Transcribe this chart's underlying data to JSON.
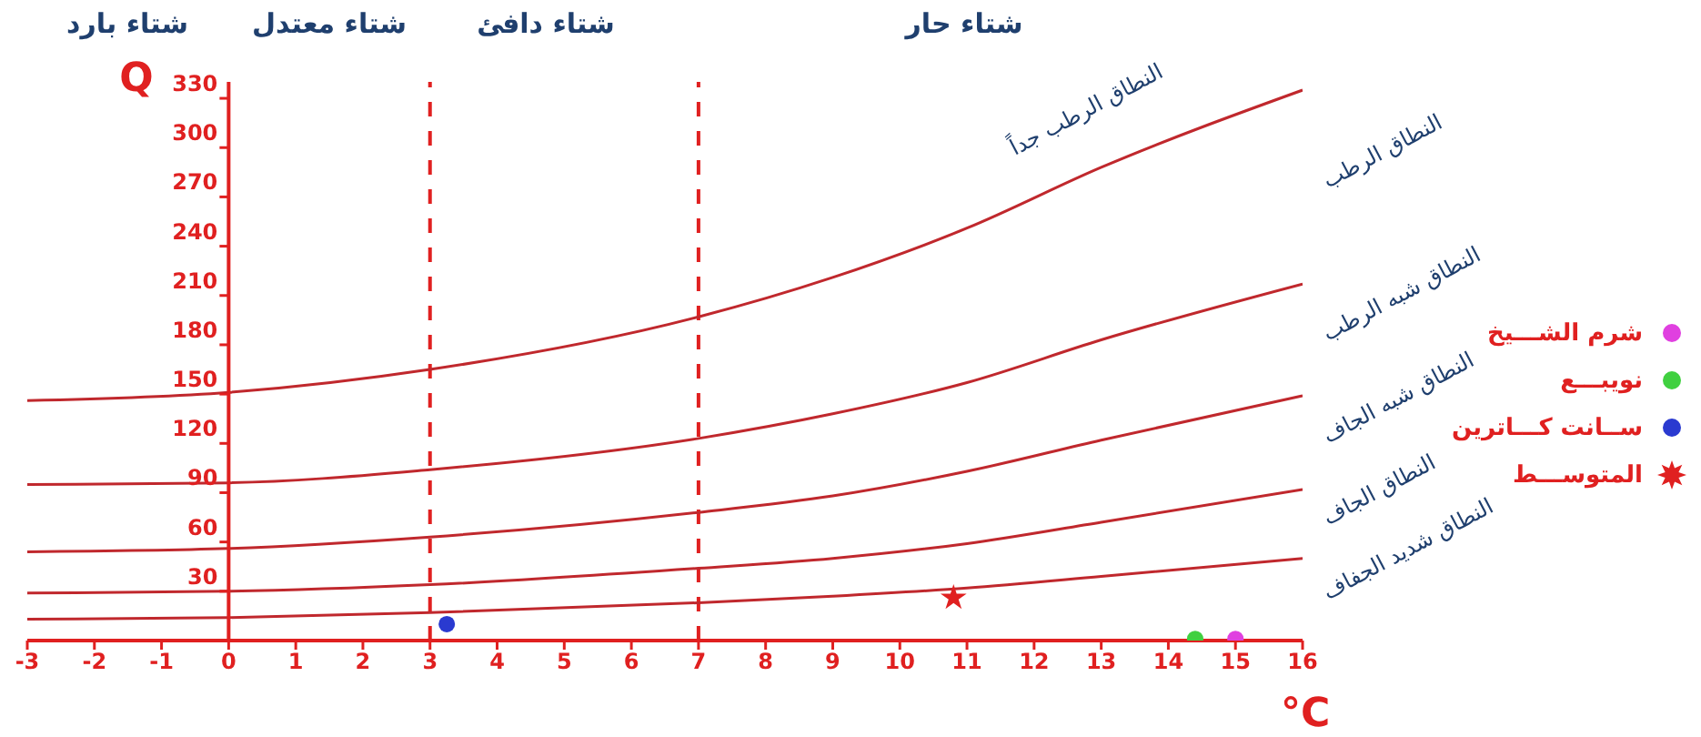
{
  "chart_data": {
    "type": "line",
    "xlabel": "°C",
    "ylabel": "Q",
    "xlim": [
      -3,
      16
    ],
    "xticks": [
      -3,
      -2,
      -1,
      0,
      1,
      2,
      3,
      4,
      5,
      6,
      7,
      8,
      9,
      10,
      11,
      12,
      13,
      14,
      15,
      16
    ],
    "ylim": [
      0,
      340
    ],
    "yticks": [
      30,
      60,
      90,
      120,
      150,
      180,
      210,
      240,
      270,
      300,
      330
    ],
    "grid": false,
    "legend": "right",
    "line_style": "solid",
    "series": [
      {
        "color": "#c0282d",
        "x": [
          -3,
          0,
          3,
          7,
          9,
          11,
          13,
          16
        ],
        "values": [
          146,
          151,
          165,
          197,
          221,
          251,
          288,
          335
        ]
      },
      {
        "color": "#c0282d",
        "x": [
          -3,
          0,
          3,
          7,
          9,
          11,
          13,
          16
        ],
        "values": [
          95,
          96,
          104,
          123,
          138,
          157,
          183,
          217
        ]
      },
      {
        "color": "#c0282d",
        "x": [
          -3,
          0,
          3,
          7,
          9,
          11,
          13,
          16
        ],
        "values": [
          54,
          56,
          63,
          78,
          88,
          103,
          122,
          149
        ]
      },
      {
        "color": "#c0282d",
        "x": [
          -3,
          0,
          3,
          7,
          9,
          11,
          13,
          16
        ],
        "values": [
          29,
          30,
          34,
          44,
          50,
          59,
          72,
          92
        ]
      },
      {
        "color": "#c0282d",
        "x": [
          -3,
          0,
          3,
          7,
          9,
          11,
          13,
          16
        ],
        "values": [
          13,
          14,
          17,
          23,
          27,
          32,
          39,
          50
        ]
      },
      {
        "type": "scatter",
        "name": "شرم الشـــيخ",
        "color": "#e040e0",
        "marker": "circle",
        "x": [
          15
        ],
        "values": [
          1
        ]
      },
      {
        "type": "scatter",
        "name": "نويبـــع",
        "color": "#40d040",
        "marker": "circle",
        "x": [
          14.4
        ],
        "values": [
          1
        ]
      },
      {
        "type": "scatter",
        "name": "ســانت كـــاترين",
        "color": "#2a3ad0",
        "marker": "circle",
        "x": [
          3.25
        ],
        "values": [
          10
        ]
      },
      {
        "type": "scatter",
        "name": "المتوســـط",
        "color": "#e02020",
        "marker": "star",
        "x": [
          10.8
        ],
        "values": [
          26
        ]
      }
    ],
    "ref_lines": [
      {
        "axis": "x",
        "value": 3,
        "color": "#e02020",
        "line_style": "dashed"
      },
      {
        "axis": "x",
        "value": 7,
        "color": "#e02020",
        "line_style": "dashed"
      }
    ],
    "annotations": [
      "شتاء بارد",
      "شتاء معتدل",
      "شتاء دافئ",
      "شتاء حار",
      "النطاق الرطب جداً",
      "النطاق الرطب",
      "النطاق شبه الرطب",
      "النطاق شبه الجاف",
      "النطاق الجاف",
      "النطاق شديد الجفاف"
    ]
  }
}
